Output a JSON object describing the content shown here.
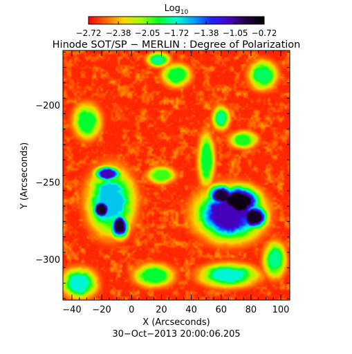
{
  "chart_data": {
    "type": "heatmap",
    "title": "Hinode SOT/SP − MERLIN : Degree of Polarization",
    "subtitle": "30−Oct−2013 20:00:06.205",
    "xlabel": "X (Arcseconds)",
    "ylabel": "Y (Arcseconds)",
    "xlim": [
      -46,
      106
    ],
    "ylim": [
      -326,
      -164
    ],
    "x_ticks": [
      -40,
      -20,
      0,
      20,
      40,
      60,
      80,
      100
    ],
    "x_tick_labels": [
      "−40",
      "−20",
      "0",
      "20",
      "40",
      "60",
      "80",
      "100"
    ],
    "y_ticks": [
      -300,
      -250,
      -200
    ],
    "y_tick_labels": [
      "−300",
      "−250",
      "−200"
    ],
    "colorbar": {
      "title_base": "Log",
      "title_sub": "10",
      "min": -2.72,
      "max": -0.72,
      "ticks": [
        -2.72,
        -2.38,
        -2.05,
        -1.72,
        -1.38,
        -1.05,
        -0.72
      ],
      "tick_labels": [
        "−2.72",
        "−2.38",
        "−2.05",
        "−1.72",
        "−1.38",
        "−1.05",
        "−0.72"
      ],
      "colormap": [
        "#ff0000",
        "#ff6a00",
        "#ffd400",
        "#9cff00",
        "#00ff20",
        "#00ffd0",
        "#00a0ff",
        "#2020ff",
        "#4a00c8",
        "#20003a",
        "#000000"
      ]
    },
    "features": [
      {
        "x": 72,
        "y": -262,
        "peak": -0.78,
        "rx": 14,
        "ry": 10
      },
      {
        "x": 60,
        "y": -258,
        "peak": -0.9,
        "rx": 9,
        "ry": 7
      },
      {
        "x": 82,
        "y": -272,
        "peak": -0.85,
        "rx": 9,
        "ry": 8
      },
      {
        "x": 66,
        "y": -270,
        "peak": -1.1,
        "rx": 22,
        "ry": 17
      },
      {
        "x": -20,
        "y": -267,
        "peak": -0.85,
        "rx": 6,
        "ry": 6
      },
      {
        "x": -8,
        "y": -278,
        "peak": -0.9,
        "rx": 6,
        "ry": 8
      },
      {
        "x": -16,
        "y": -244,
        "peak": -1.1,
        "rx": 9,
        "ry": 5
      },
      {
        "x": -14,
        "y": -262,
        "peak": -1.6,
        "rx": 16,
        "ry": 22
      },
      {
        "x": 60,
        "y": -208,
        "peak": -1.8,
        "rx": 6,
        "ry": 8
      },
      {
        "x": 50,
        "y": -235,
        "peak": -1.9,
        "rx": 6,
        "ry": 18
      },
      {
        "x": 75,
        "y": -222,
        "peak": -1.95,
        "rx": 10,
        "ry": 6
      },
      {
        "x": 18,
        "y": -170,
        "peak": -1.8,
        "rx": 8,
        "ry": 5
      },
      {
        "x": 30,
        "y": -180,
        "peak": -1.9,
        "rx": 10,
        "ry": 8
      },
      {
        "x": 65,
        "y": -310,
        "peak": -1.7,
        "rx": 20,
        "ry": 8
      },
      {
        "x": -35,
        "y": -315,
        "peak": -1.7,
        "rx": 12,
        "ry": 10
      },
      {
        "x": 15,
        "y": -310,
        "peak": -1.9,
        "rx": 14,
        "ry": 8
      },
      {
        "x": 88,
        "y": -180,
        "peak": -1.85,
        "rx": 10,
        "ry": 10
      },
      {
        "x": -30,
        "y": -210,
        "peak": -1.9,
        "rx": 10,
        "ry": 12
      },
      {
        "x": 20,
        "y": -245,
        "peak": -2.0,
        "rx": 10,
        "ry": 6
      },
      {
        "x": 96,
        "y": -300,
        "peak": -1.8,
        "rx": 8,
        "ry": 12
      }
    ]
  }
}
